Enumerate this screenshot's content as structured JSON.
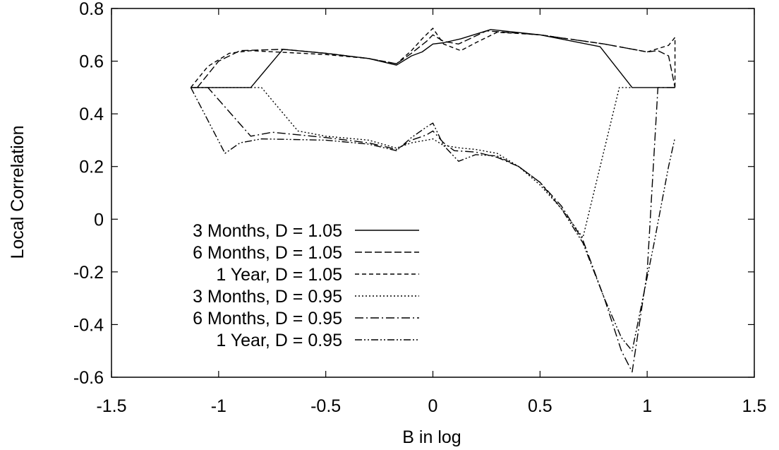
{
  "chart_data": {
    "type": "line",
    "title": "",
    "xlabel": "B in log",
    "ylabel": "Local Correlation",
    "xlim": [
      -1.5,
      1.5
    ],
    "ylim": [
      -0.6,
      0.8
    ],
    "xticks": [
      "-1.5",
      "-1",
      "-0.5",
      "0",
      "0.5",
      "1",
      "1.5"
    ],
    "xtick_values": [
      -1.5,
      -1,
      -0.5,
      0,
      0.5,
      1,
      1.5
    ],
    "yticks": [
      "-0.6",
      "-0.4",
      "-0.2",
      "0",
      "0.2",
      "0.4",
      "0.6",
      "0.8"
    ],
    "ytick_values": [
      -0.6,
      -0.4,
      -0.2,
      0,
      0.2,
      0.4,
      0.6,
      0.8
    ],
    "grid": false,
    "legend_position": "bottom-left",
    "series": [
      {
        "name": "3 Months, D = 1.05",
        "dash": "solid",
        "points": [
          [
            -1.13,
            0.5
          ],
          [
            -0.85,
            0.5
          ],
          [
            -0.7,
            0.645
          ],
          [
            -0.5,
            0.63
          ],
          [
            -0.3,
            0.61
          ],
          [
            -0.17,
            0.585
          ],
          [
            -0.1,
            0.62
          ],
          [
            -0.05,
            0.635
          ],
          [
            0,
            0.665
          ],
          [
            0.05,
            0.67
          ],
          [
            0.13,
            0.685
          ],
          [
            0.27,
            0.72
          ],
          [
            0.5,
            0.7
          ],
          [
            0.78,
            0.655
          ],
          [
            0.93,
            0.5
          ],
          [
            1.13,
            0.5
          ]
        ]
      },
      {
        "name": "6 Months, D = 1.05",
        "dash": "10,4",
        "points": [
          [
            -1.1,
            0.5
          ],
          [
            -1.0,
            0.6
          ],
          [
            -0.9,
            0.64
          ],
          [
            -0.7,
            0.645
          ],
          [
            -0.5,
            0.63
          ],
          [
            -0.3,
            0.61
          ],
          [
            -0.17,
            0.59
          ],
          [
            -0.1,
            0.63
          ],
          [
            -0.03,
            0.675
          ],
          [
            0,
            0.7
          ],
          [
            0.05,
            0.675
          ],
          [
            0.12,
            0.665
          ],
          [
            0.25,
            0.715
          ],
          [
            0.5,
            0.7
          ],
          [
            0.8,
            0.665
          ],
          [
            1.0,
            0.635
          ],
          [
            1.05,
            0.64
          ],
          [
            1.1,
            0.62
          ],
          [
            1.13,
            0.5
          ]
        ]
      },
      {
        "name": "1 Year, D = 1.05",
        "dash": "6,4",
        "points": [
          [
            -1.13,
            0.5
          ],
          [
            -1.05,
            0.58
          ],
          [
            -0.95,
            0.63
          ],
          [
            -0.85,
            0.64
          ],
          [
            -0.5,
            0.625
          ],
          [
            -0.3,
            0.61
          ],
          [
            -0.17,
            0.59
          ],
          [
            -0.1,
            0.64
          ],
          [
            -0.05,
            0.685
          ],
          [
            0,
            0.725
          ],
          [
            0.05,
            0.665
          ],
          [
            0.13,
            0.64
          ],
          [
            0.2,
            0.67
          ],
          [
            0.3,
            0.71
          ],
          [
            0.5,
            0.7
          ],
          [
            0.8,
            0.665
          ],
          [
            1.0,
            0.635
          ],
          [
            1.1,
            0.66
          ],
          [
            1.13,
            0.69
          ],
          [
            1.13,
            0.5
          ]
        ]
      },
      {
        "name": "3 Months, D = 0.95",
        "dash": "2,3",
        "points": [
          [
            -1.13,
            0.5
          ],
          [
            -0.8,
            0.5
          ],
          [
            -0.63,
            0.335
          ],
          [
            -0.5,
            0.315
          ],
          [
            -0.3,
            0.3
          ],
          [
            -0.17,
            0.27
          ],
          [
            -0.1,
            0.29
          ],
          [
            -0.03,
            0.3
          ],
          [
            0,
            0.305
          ],
          [
            0.05,
            0.28
          ],
          [
            0.13,
            0.27
          ],
          [
            0.2,
            0.265
          ],
          [
            0.3,
            0.25
          ],
          [
            0.4,
            0.2
          ],
          [
            0.5,
            0.13
          ],
          [
            0.6,
            0.04
          ],
          [
            0.7,
            -0.07
          ],
          [
            0.87,
            0.5
          ],
          [
            0.93,
            0.5
          ]
        ]
      },
      {
        "name": "6 Months, D = 0.95",
        "dash": "12,4,2,4",
        "points": [
          [
            -1.13,
            0.5
          ],
          [
            -1.05,
            0.5
          ],
          [
            -0.85,
            0.315
          ],
          [
            -0.75,
            0.33
          ],
          [
            -0.5,
            0.31
          ],
          [
            -0.3,
            0.29
          ],
          [
            -0.17,
            0.265
          ],
          [
            -0.1,
            0.3
          ],
          [
            -0.03,
            0.32
          ],
          [
            0,
            0.335
          ],
          [
            0.05,
            0.29
          ],
          [
            0.1,
            0.26
          ],
          [
            0.2,
            0.255
          ],
          [
            0.3,
            0.235
          ],
          [
            0.4,
            0.2
          ],
          [
            0.5,
            0.14
          ],
          [
            0.6,
            0.05
          ],
          [
            0.7,
            -0.08
          ],
          [
            0.8,
            -0.3
          ],
          [
            0.88,
            -0.5
          ],
          [
            0.93,
            -0.58
          ],
          [
            1.0,
            -0.2
          ],
          [
            1.05,
            0.5
          ],
          [
            1.13,
            0.5
          ]
        ]
      },
      {
        "name": "1 Year, D = 0.95",
        "dash": "10,3,2,3,2,3",
        "points": [
          [
            -1.13,
            0.5
          ],
          [
            -0.97,
            0.25
          ],
          [
            -0.9,
            0.29
          ],
          [
            -0.8,
            0.305
          ],
          [
            -0.5,
            0.3
          ],
          [
            -0.3,
            0.285
          ],
          [
            -0.17,
            0.26
          ],
          [
            -0.1,
            0.31
          ],
          [
            -0.03,
            0.35
          ],
          [
            0,
            0.365
          ],
          [
            0.05,
            0.28
          ],
          [
            0.12,
            0.22
          ],
          [
            0.2,
            0.245
          ],
          [
            0.3,
            0.24
          ],
          [
            0.4,
            0.2
          ],
          [
            0.5,
            0.14
          ],
          [
            0.6,
            0.04
          ],
          [
            0.7,
            -0.09
          ],
          [
            0.8,
            -0.3
          ],
          [
            0.88,
            -0.45
          ],
          [
            0.93,
            -0.5
          ],
          [
            1.03,
            -0.1
          ],
          [
            1.1,
            0.2
          ],
          [
            1.13,
            0.31
          ]
        ]
      }
    ]
  }
}
